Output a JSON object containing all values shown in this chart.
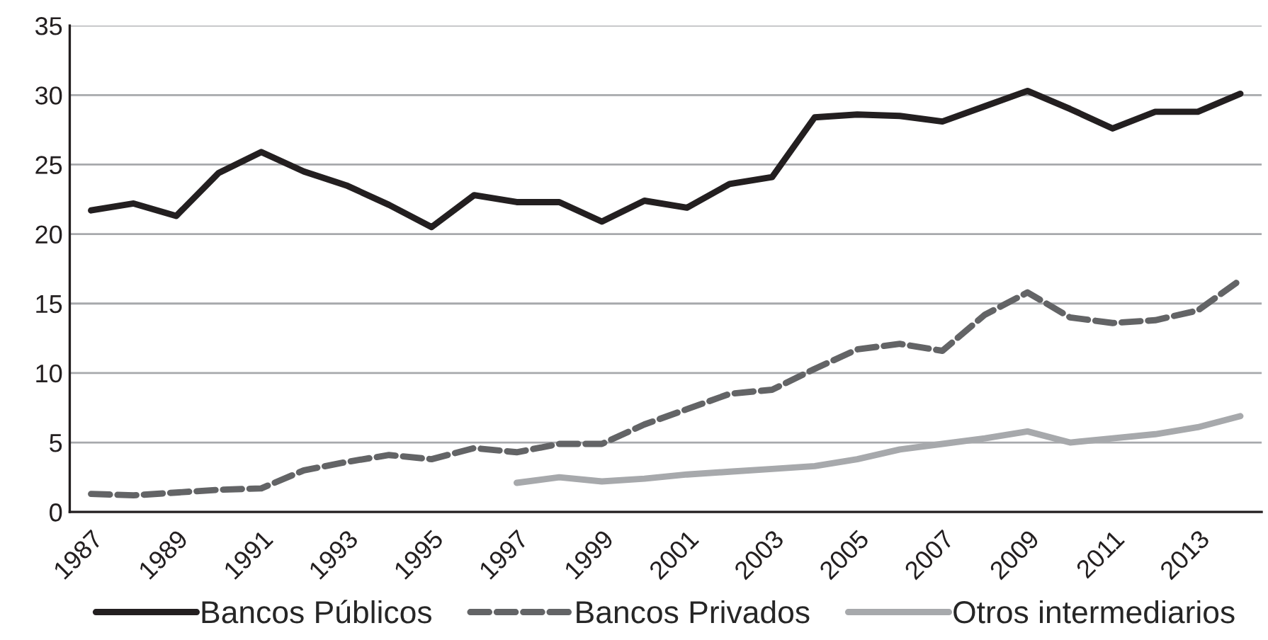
{
  "chart_data": {
    "type": "line",
    "categories": [
      "1987",
      null,
      "1989",
      null,
      "1991",
      null,
      "1993",
      null,
      "1995",
      null,
      "1997",
      null,
      "1999",
      null,
      "2001",
      null,
      "2003",
      null,
      "2005",
      null,
      "2007",
      null,
      "2009",
      null,
      "2011",
      null,
      "2013",
      null
    ],
    "series": [
      {
        "name": "Bancos Públicos",
        "color": "#231f20",
        "line_style": "solid",
        "values": [
          21.7,
          22.2,
          21.3,
          24.4,
          25.9,
          24.5,
          23.5,
          22.1,
          20.5,
          22.8,
          22.3,
          22.3,
          20.9,
          22.4,
          21.9,
          23.6,
          24.1,
          28.4,
          28.6,
          28.5,
          28.1,
          29.2,
          30.3,
          29.0,
          27.6,
          28.8,
          28.8,
          30.1
        ]
      },
      {
        "name": "Bancos Privados",
        "color": "#636466",
        "line_style": "dashed",
        "values": [
          1.3,
          1.2,
          1.4,
          1.6,
          1.7,
          3.0,
          3.6,
          4.1,
          3.8,
          4.6,
          4.3,
          4.9,
          4.9,
          6.3,
          7.4,
          8.5,
          8.8,
          10.3,
          11.7,
          12.1,
          11.6,
          14.2,
          15.8,
          14.0,
          13.6,
          13.8,
          14.5,
          16.7
        ]
      },
      {
        "name": "Otros intermediarios",
        "color": "#a7a9ac",
        "line_style": "solid",
        "values": [
          null,
          null,
          null,
          null,
          null,
          null,
          null,
          null,
          null,
          null,
          2.1,
          2.5,
          2.2,
          2.4,
          2.7,
          2.9,
          3.1,
          3.3,
          3.8,
          4.5,
          4.9,
          5.3,
          5.8,
          5.0,
          5.3,
          5.6,
          6.1,
          6.9
        ]
      }
    ],
    "ylim": [
      0,
      35
    ],
    "yticks": [
      0,
      5,
      10,
      15,
      20,
      25,
      30,
      35
    ],
    "grid": "y",
    "legend": "bottom"
  }
}
